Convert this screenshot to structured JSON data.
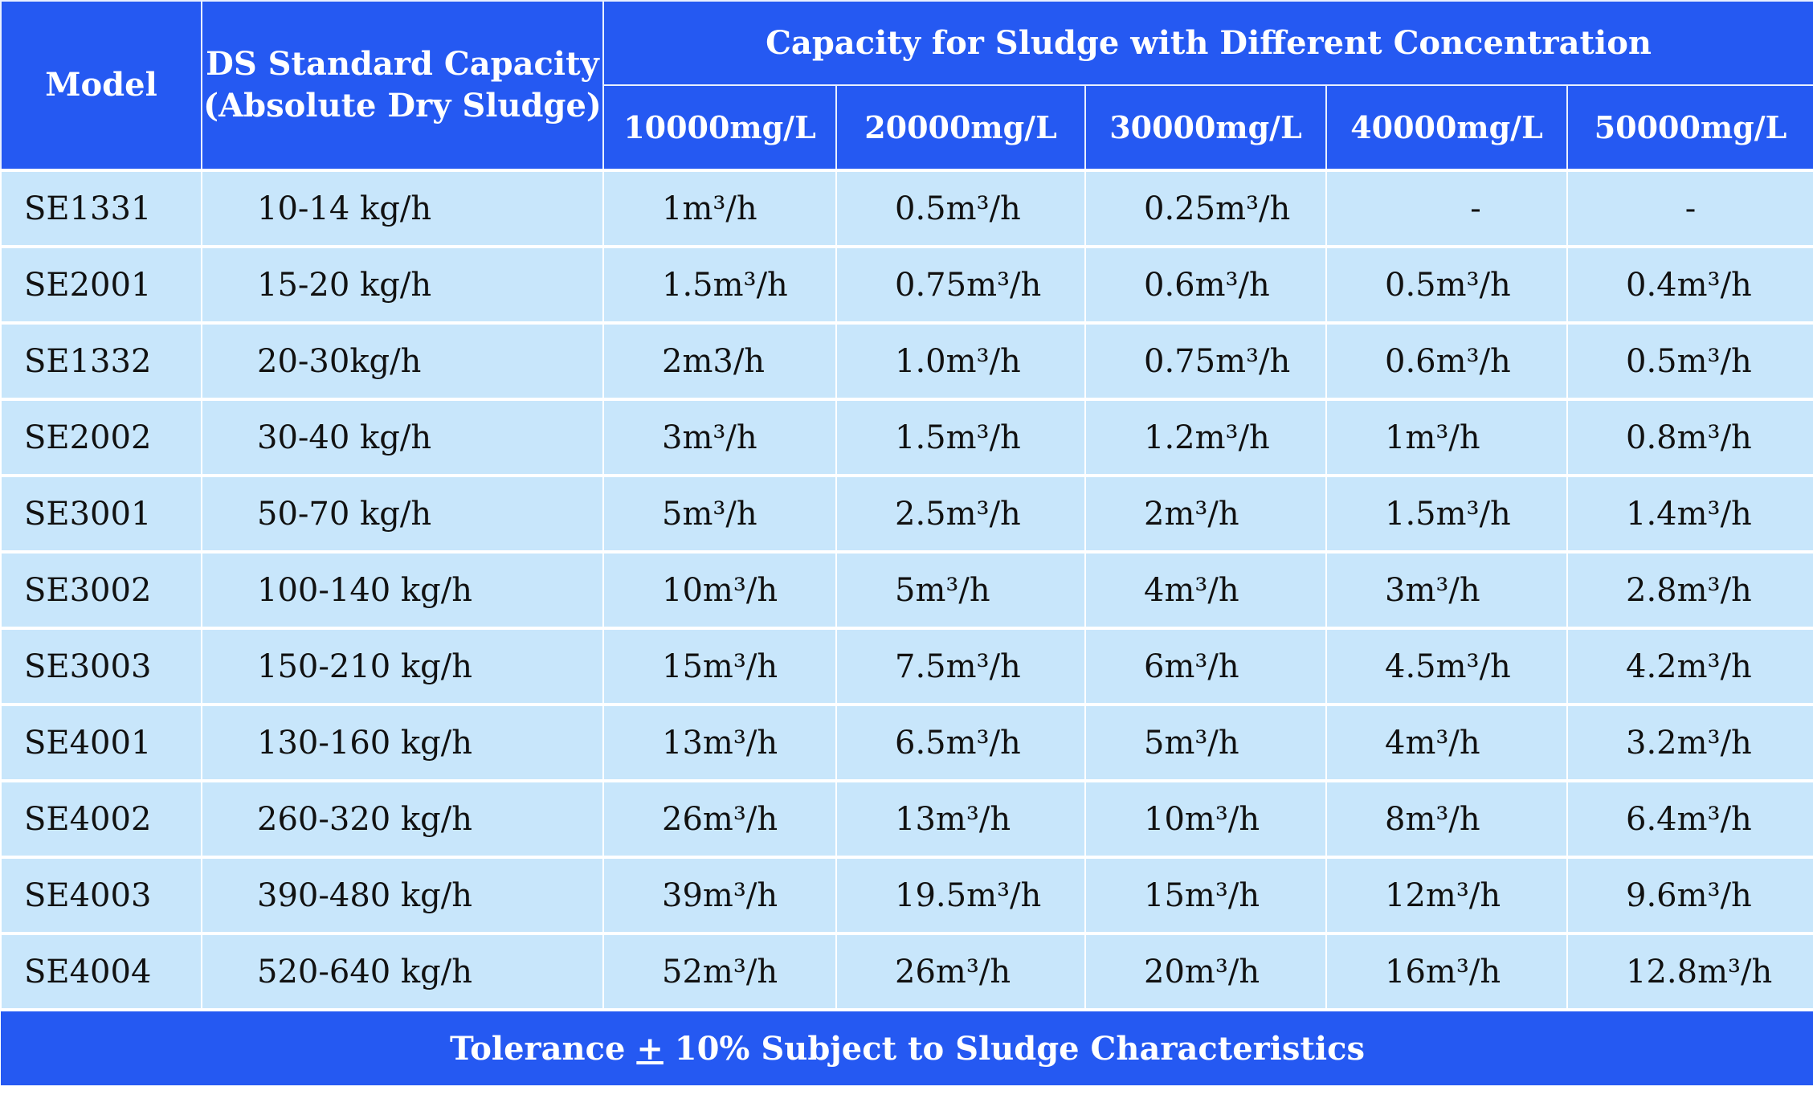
{
  "header": {
    "model": "Model",
    "ds_line1": "DS Standard Capacity",
    "ds_line2": "(Absolute Dry Sludge)",
    "group": "Capacity for Sludge with Different Concentration",
    "concentrations": [
      "10000mg/L",
      "20000mg/L",
      "30000mg/L",
      "40000mg/L",
      "50000mg/L"
    ]
  },
  "rows": [
    {
      "model": "SE1331",
      "ds": "10-14 kg/h",
      "caps": [
        "1m³/h",
        "0.5m³/h",
        "0.25m³/h",
        "-",
        "-"
      ]
    },
    {
      "model": "SE2001",
      "ds": "15-20 kg/h",
      "caps": [
        "1.5m³/h",
        "0.75m³/h",
        "0.6m³/h",
        "0.5m³/h",
        "0.4m³/h"
      ]
    },
    {
      "model": "SE1332",
      "ds": "20-30kg/h",
      "caps": [
        "2m3/h",
        "1.0m³/h",
        "0.75m³/h",
        "0.6m³/h",
        "0.5m³/h"
      ]
    },
    {
      "model": "SE2002",
      "ds": "30-40 kg/h",
      "caps": [
        "3m³/h",
        "1.5m³/h",
        "1.2m³/h",
        "1m³/h",
        "0.8m³/h"
      ]
    },
    {
      "model": "SE3001",
      "ds": "50-70 kg/h",
      "caps": [
        "5m³/h",
        "2.5m³/h",
        "2m³/h",
        "1.5m³/h",
        "1.4m³/h"
      ]
    },
    {
      "model": "SE3002",
      "ds": "100-140 kg/h",
      "caps": [
        "10m³/h",
        "5m³/h",
        "4m³/h",
        "3m³/h",
        "2.8m³/h"
      ]
    },
    {
      "model": "SE3003",
      "ds": "150-210 kg/h",
      "caps": [
        "15m³/h",
        "7.5m³/h",
        "6m³/h",
        "4.5m³/h",
        "4.2m³/h"
      ]
    },
    {
      "model": "SE4001",
      "ds": "130-160 kg/h",
      "caps": [
        "13m³/h",
        "6.5m³/h",
        "5m³/h",
        "4m³/h",
        "3.2m³/h"
      ]
    },
    {
      "model": "SE4002",
      "ds": "260-320 kg/h",
      "caps": [
        "26m³/h",
        "13m³/h",
        "10m³/h",
        "8m³/h",
        "6.4m³/h"
      ]
    },
    {
      "model": "SE4003",
      "ds": "390-480 kg/h",
      "caps": [
        "39m³/h",
        "19.5m³/h",
        "15m³/h",
        "12m³/h",
        "9.6m³/h"
      ]
    },
    {
      "model": "SE4004",
      "ds": "520-640 kg/h",
      "caps": [
        "52m³/h",
        "26m³/h",
        "20m³/h",
        "16m³/h",
        "12.8m³/h"
      ]
    }
  ],
  "footer": {
    "prefix": "Tolerance ",
    "plusminus": "+",
    "suffix": " 10% Subject to Sludge Characteristics"
  },
  "colors": {
    "header_bg": "#2559f2",
    "row_bg": "#c8e6fb",
    "header_text": "#ffffff",
    "body_text": "#111111"
  }
}
